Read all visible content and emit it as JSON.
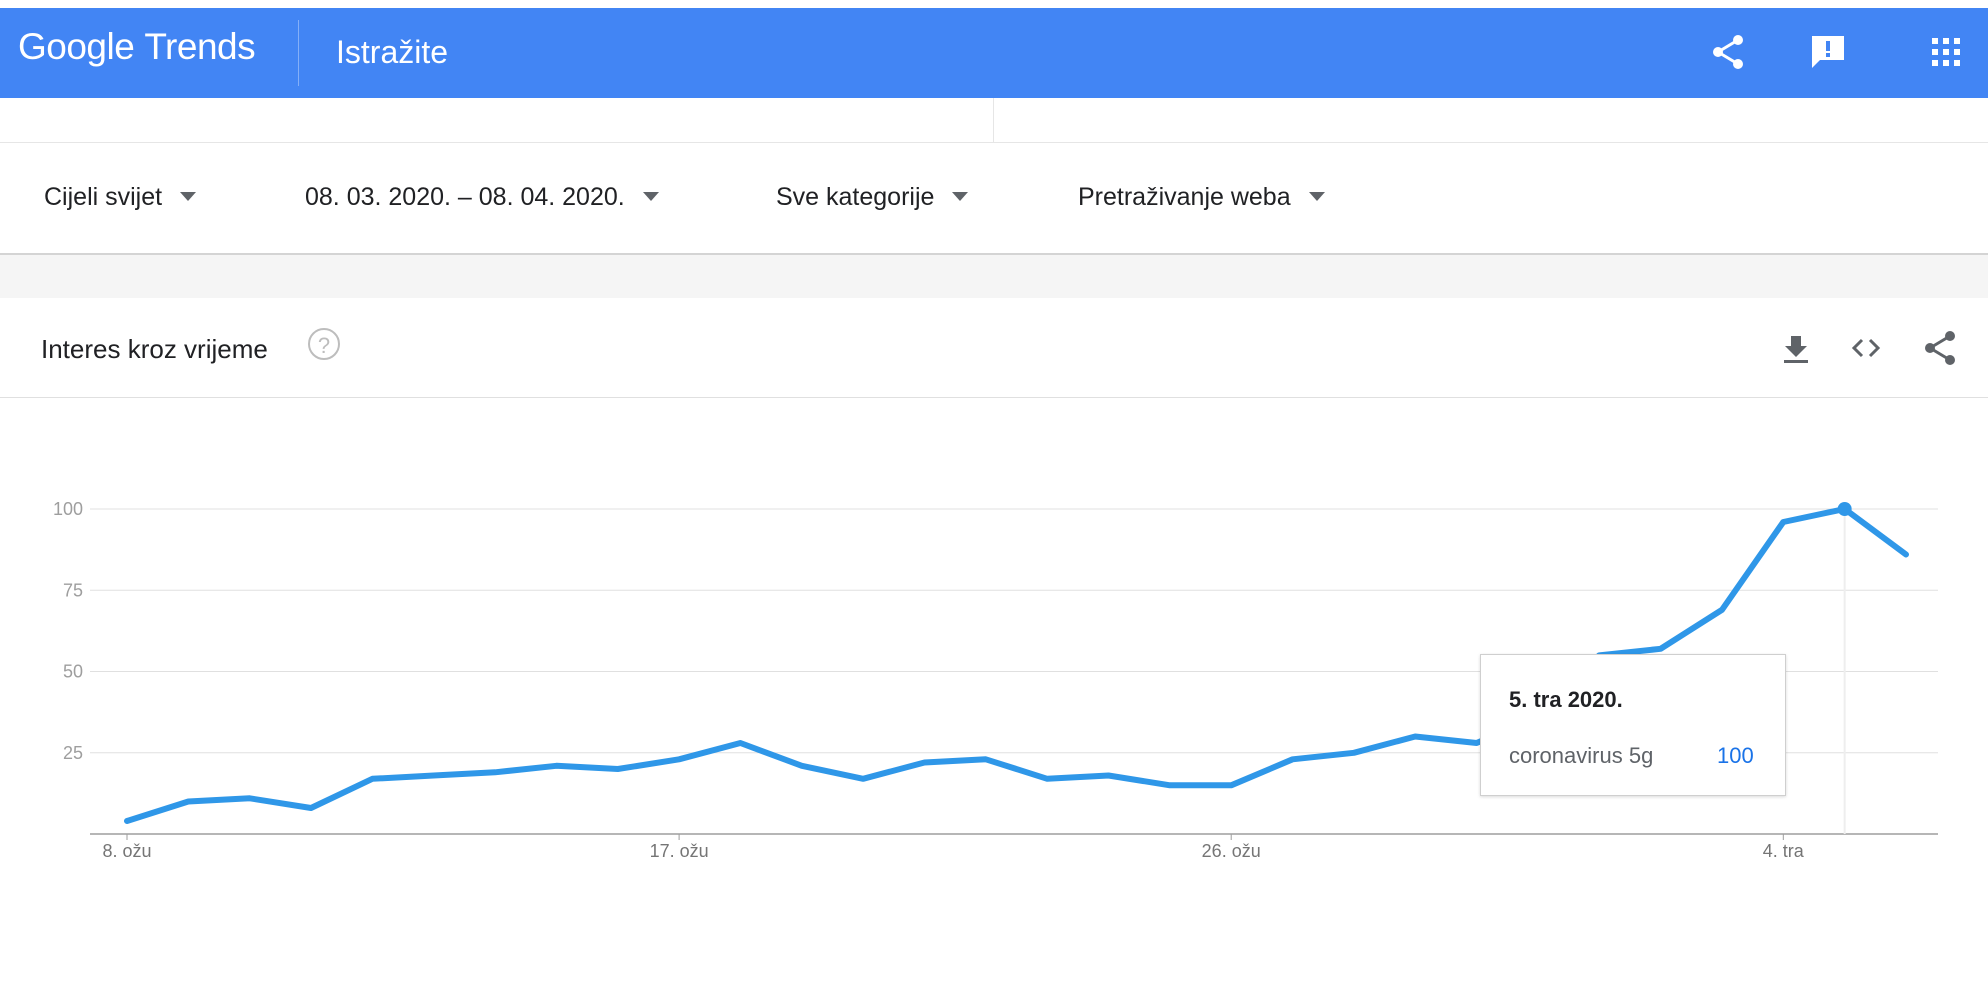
{
  "header": {
    "logo_google": "Google",
    "logo_trends": "Trends",
    "section": "Istražite"
  },
  "filters": {
    "region": "Cijeli svijet",
    "date_range": "08. 03. 2020. – 08. 04. 2020.",
    "category": "Sve kategorije",
    "search_type": "Pretraživanje weba"
  },
  "card": {
    "title": "Interes kroz vrijeme",
    "help": "?"
  },
  "tooltip": {
    "date": "5. tra 2020.",
    "term": "coronavirus 5g",
    "value": "100"
  },
  "colors": {
    "brand": "#4285f4",
    "line": "#2f97e8",
    "accent_value": "#1a73e8"
  },
  "icons": [
    "share-icon",
    "feedback-icon",
    "apps-icon",
    "download-icon",
    "embed-icon",
    "share-icon"
  ],
  "chart_data": {
    "type": "line",
    "ylim": [
      0,
      100
    ],
    "yticks": [
      "25",
      "50",
      "75",
      "100"
    ],
    "xtick_labels": [
      "8. ožu",
      "17. ožu",
      "26. ožu",
      "4. tra"
    ],
    "xtick_indices": [
      0,
      9,
      18,
      27
    ],
    "highlight_index": 28,
    "series": [
      {
        "name": "coronavirus 5g",
        "values": [
          4,
          10,
          11,
          8,
          17,
          18,
          19,
          21,
          20,
          23,
          28,
          21,
          17,
          22,
          23,
          17,
          18,
          15,
          15,
          23,
          25,
          30,
          28,
          36,
          55,
          57,
          69,
          96,
          100,
          86
        ]
      }
    ]
  }
}
